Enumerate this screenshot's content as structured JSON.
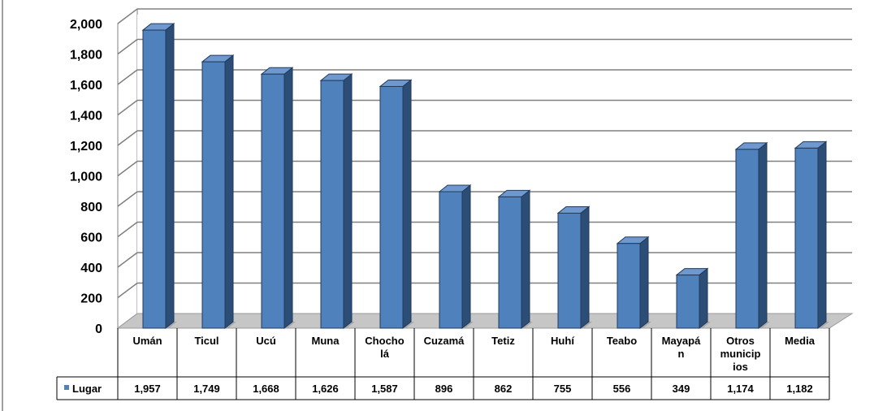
{
  "chart_data": {
    "type": "bar",
    "categories": [
      "Umán",
      "Ticul",
      "Ucú",
      "Muna",
      "Chocholá",
      "Cuzamá",
      "Tetiz",
      "Huhí",
      "Teabo",
      "Mayapán",
      "Otros municipios",
      "Media"
    ],
    "category_lines": [
      [
        "Umán"
      ],
      [
        "Ticul"
      ],
      [
        "Ucú"
      ],
      [
        "Muna"
      ],
      [
        "Chocho",
        "lá"
      ],
      [
        "Cuzamá"
      ],
      [
        "Tetiz"
      ],
      [
        "Huhí"
      ],
      [
        "Teabo"
      ],
      [
        "Mayapá",
        "n"
      ],
      [
        "Otros",
        "municip",
        "ios"
      ],
      [
        "Media"
      ]
    ],
    "series": [
      {
        "name": "Lugar",
        "values": [
          1957,
          1749,
          1668,
          1626,
          1587,
          896,
          862,
          755,
          556,
          349,
          1174,
          1182
        ]
      }
    ],
    "value_labels": [
      "1,957",
      "1,749",
      "1,668",
      "1,626",
      "1,587",
      "896",
      "862",
      "755",
      "556",
      "349",
      "1,174",
      "1,182"
    ],
    "yticks": [
      "0",
      "200",
      "400",
      "600",
      "800",
      "1,000",
      "1,200",
      "1,400",
      "1,600",
      "1,800",
      "2,000"
    ],
    "ylim": [
      0,
      2000
    ],
    "grid": true,
    "legend": "data-table-left",
    "colors": {
      "bar_front": "#4f81bd",
      "bar_side": "#2c4d75",
      "bar_top": "#6f98cf",
      "floor": "#c6c6c6"
    }
  }
}
